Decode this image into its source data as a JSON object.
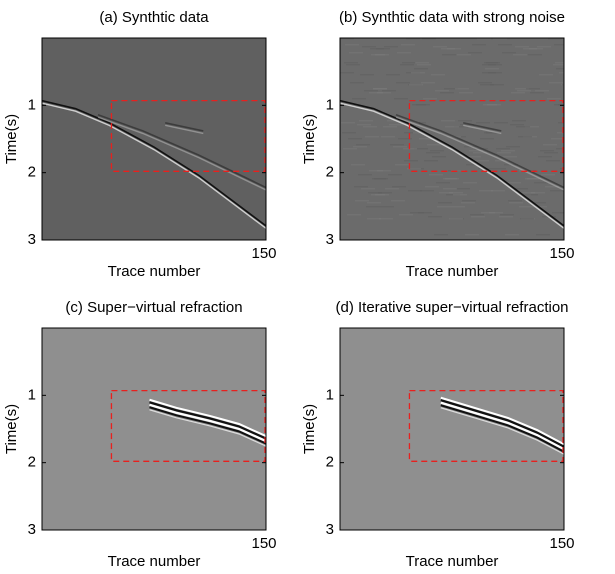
{
  "chart_data": [
    {
      "type": "image",
      "title": "(a) Synthtic data",
      "xlabel": "Trace number",
      "ylabel": "Time(s)",
      "xlim": [
        1,
        150
      ],
      "xticks": [
        150
      ],
      "ylim": [
        0,
        3
      ],
      "yticks": [
        1,
        2,
        3
      ],
      "color": "#606060"
    },
    {
      "type": "image",
      "title": "(b) Synthtic data with strong noise",
      "xlabel": "Trace number",
      "ylabel": "Time(s)",
      "xlim": [
        1,
        150
      ],
      "xticks": [
        150
      ],
      "ylim": [
        0,
        3
      ],
      "yticks": [
        1,
        2,
        3
      ],
      "color": "#6b6b6b"
    },
    {
      "type": "image",
      "title": "(c) Super−virtual refraction",
      "xlabel": "Trace number",
      "ylabel": "Time(s)",
      "xlim": [
        1,
        150
      ],
      "xticks": [
        150
      ],
      "ylim": [
        0,
        3
      ],
      "yticks": [
        1,
        2,
        3
      ],
      "color": "#8f8f8f"
    },
    {
      "type": "image",
      "title": "(d) Iterative super−virtual refraction",
      "xlabel": "Trace number",
      "ylabel": "Time(s)",
      "xlim": [
        1,
        150
      ],
      "xticks": [
        150
      ],
      "ylim": [
        0,
        3
      ],
      "yticks": [
        1,
        2,
        3
      ],
      "color": "#8f8f8f"
    }
  ]
}
